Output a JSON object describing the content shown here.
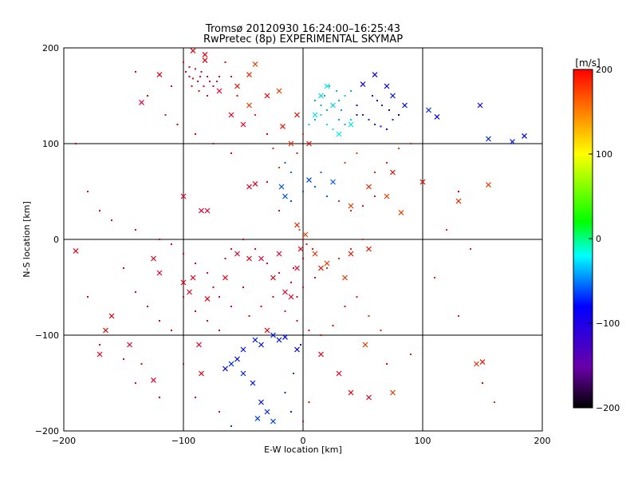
{
  "chart_data": {
    "type": "scatter",
    "title": "Tromsø 20120930 16:24:00–16:25:43",
    "subtitle": "RwPretec (8p) EXPERIMENTAL SKYMAP",
    "xlabel": "E-W location [km]",
    "ylabel": "N-S location [km]",
    "xlim": [
      -200,
      200
    ],
    "ylim": [
      -200,
      200
    ],
    "xticks": [
      -200,
      -100,
      0,
      100,
      200
    ],
    "yticks": [
      -200,
      -100,
      0,
      100,
      200
    ],
    "grid": true,
    "colorbar": {
      "label": "[m/s]",
      "range": [
        -200,
        200
      ],
      "ticks": [
        200,
        100,
        0,
        -100,
        -200
      ],
      "colormap": "rainbow (black → purple → blue → cyan → green → yellow → red)"
    },
    "series": [
      {
        "marker": "x",
        "points": [
          [
            -92,
            197
          ],
          [
            -82,
            193
          ],
          [
            -120,
            172
          ],
          [
            -135,
            143
          ],
          [
            -82,
            187
          ],
          [
            -70,
            155
          ],
          [
            -60,
            130
          ],
          [
            -50,
            120
          ],
          [
            -45,
            140
          ],
          [
            -55,
            160
          ],
          [
            -45,
            172
          ],
          [
            -40,
            183
          ],
          [
            -30,
            150
          ],
          [
            -20,
            155
          ],
          [
            -17,
            118
          ],
          [
            -10,
            100
          ],
          [
            -5,
            130
          ],
          [
            5,
            100
          ],
          [
            10,
            130
          ],
          [
            15,
            150
          ],
          [
            20,
            160
          ],
          [
            25,
            140
          ],
          [
            30,
            110
          ],
          [
            40,
            120
          ],
          [
            50,
            162
          ],
          [
            60,
            172
          ],
          [
            70,
            160
          ],
          [
            75,
            150
          ],
          [
            85,
            140
          ],
          [
            105,
            135
          ],
          [
            112,
            128
          ],
          [
            148,
            140
          ],
          [
            155,
            105
          ],
          [
            175,
            102
          ],
          [
            185,
            108
          ],
          [
            -45,
            55
          ],
          [
            -40,
            58
          ],
          [
            -18,
            55
          ],
          [
            -15,
            45
          ],
          [
            5,
            62
          ],
          [
            25,
            60
          ],
          [
            40,
            35
          ],
          [
            55,
            55
          ],
          [
            70,
            45
          ],
          [
            75,
            70
          ],
          [
            82,
            28
          ],
          [
            100,
            60
          ],
          [
            130,
            40
          ],
          [
            155,
            57
          ],
          [
            -100,
            45
          ],
          [
            -85,
            30
          ],
          [
            -80,
            30
          ],
          [
            -190,
            -12
          ],
          [
            -125,
            -20
          ],
          [
            -120,
            -35
          ],
          [
            -100,
            -45
          ],
          [
            -95,
            -55
          ],
          [
            -92,
            -40
          ],
          [
            -80,
            -62
          ],
          [
            -65,
            -40
          ],
          [
            -55,
            -15
          ],
          [
            -45,
            -20
          ],
          [
            -35,
            -20
          ],
          [
            -25,
            -40
          ],
          [
            -15,
            -55
          ],
          [
            -10,
            -60
          ],
          [
            -5,
            -30
          ],
          [
            -2,
            -10
          ],
          [
            2,
            5
          ],
          [
            -5,
            15
          ],
          [
            10,
            -15
          ],
          [
            15,
            -30
          ],
          [
            20,
            -25
          ],
          [
            35,
            -40
          ],
          [
            40,
            -15
          ],
          [
            55,
            -10
          ],
          [
            -20,
            -15
          ],
          [
            -170,
            -120
          ],
          [
            -165,
            -95
          ],
          [
            -160,
            -80
          ],
          [
            -145,
            -110
          ],
          [
            -125,
            -147
          ],
          [
            -85,
            -140
          ],
          [
            -87,
            -110
          ],
          [
            -55,
            -125
          ],
          [
            -50,
            -140
          ],
          [
            -42,
            -150
          ],
          [
            -35,
            -170
          ],
          [
            -30,
            -180
          ],
          [
            -25,
            -190
          ],
          [
            -38,
            -187
          ],
          [
            15,
            -120
          ],
          [
            30,
            -140
          ],
          [
            40,
            -160
          ],
          [
            55,
            -165
          ],
          [
            75,
            -160
          ],
          [
            150,
            -128
          ],
          [
            145,
            -130
          ],
          [
            52,
            -110
          ],
          [
            -65,
            -135
          ],
          [
            -50,
            -115
          ],
          [
            -40,
            -105
          ],
          [
            -35,
            -110
          ],
          [
            -25,
            -100
          ],
          [
            -20,
            -105
          ],
          [
            -15,
            -102
          ],
          [
            -30,
            -95
          ],
          [
            -5,
            -115
          ],
          [
            -60,
            -130
          ]
        ]
      },
      {
        "marker": "dot",
        "points": [
          [
            -100,
            185
          ],
          [
            -95,
            180
          ],
          [
            -90,
            178
          ],
          [
            -85,
            175
          ],
          [
            -80,
            170
          ],
          [
            -78,
            165
          ],
          [
            -95,
            170
          ],
          [
            -88,
            165
          ],
          [
            -83,
            160
          ],
          [
            -93,
            160
          ],
          [
            -87,
            155
          ],
          [
            -80,
            150
          ],
          [
            -75,
            160
          ],
          [
            -72,
            165
          ],
          [
            -70,
            170
          ],
          [
            -98,
            175
          ],
          [
            -92,
            168
          ],
          [
            -86,
            170
          ],
          [
            -110,
            160
          ],
          [
            -115,
            130
          ],
          [
            -105,
            120
          ],
          [
            -65,
            185
          ],
          [
            -60,
            170
          ],
          [
            -55,
            150
          ],
          [
            -40,
            130
          ],
          [
            -30,
            110
          ],
          [
            -25,
            95
          ],
          [
            -15,
            80
          ],
          [
            -5,
            90
          ],
          [
            0,
            110
          ],
          [
            5,
            120
          ],
          [
            10,
            125
          ],
          [
            15,
            130
          ],
          [
            20,
            135
          ],
          [
            25,
            140
          ],
          [
            30,
            145
          ],
          [
            35,
            150
          ],
          [
            40,
            155
          ],
          [
            45,
            140
          ],
          [
            50,
            130
          ],
          [
            55,
            125
          ],
          [
            60,
            120
          ],
          [
            65,
            118
          ],
          [
            70,
            115
          ],
          [
            75,
            125
          ],
          [
            80,
            130
          ],
          [
            72,
            135
          ],
          [
            66,
            140
          ],
          [
            62,
            145
          ],
          [
            58,
            150
          ],
          [
            20,
            120
          ],
          [
            25,
            115
          ],
          [
            30,
            125
          ],
          [
            35,
            120
          ],
          [
            40,
            125
          ],
          [
            45,
            130
          ],
          [
            10,
            145
          ],
          [
            15,
            140
          ],
          [
            18,
            150
          ],
          [
            22,
            160
          ],
          [
            28,
            155
          ],
          [
            32,
            135
          ],
          [
            -190,
            100
          ],
          [
            -180,
            50
          ],
          [
            -170,
            30
          ],
          [
            -160,
            20
          ],
          [
            -140,
            10
          ],
          [
            -120,
            0
          ],
          [
            -110,
            -5
          ],
          [
            -100,
            -15
          ],
          [
            -90,
            -25
          ],
          [
            -80,
            -35
          ],
          [
            -75,
            -50
          ],
          [
            -70,
            -60
          ],
          [
            -65,
            -20
          ],
          [
            -60,
            -10
          ],
          [
            -50,
            0
          ],
          [
            -40,
            -10
          ],
          [
            -30,
            -25
          ],
          [
            -20,
            -35
          ],
          [
            -10,
            -45
          ],
          [
            0,
            -50
          ],
          [
            10,
            -40
          ],
          [
            20,
            -30
          ],
          [
            30,
            -20
          ],
          [
            40,
            -10
          ],
          [
            50,
            0
          ],
          [
            -150,
            -30
          ],
          [
            -140,
            -55
          ],
          [
            -130,
            -70
          ],
          [
            -120,
            -85
          ],
          [
            -110,
            -95
          ],
          [
            -100,
            -60
          ],
          [
            -90,
            -75
          ],
          [
            -80,
            -85
          ],
          [
            -70,
            -95
          ],
          [
            -60,
            -70
          ],
          [
            -50,
            -50
          ],
          [
            -45,
            -80
          ],
          [
            -35,
            -70
          ],
          [
            -25,
            -60
          ],
          [
            -15,
            -75
          ],
          [
            -5,
            -85
          ],
          [
            5,
            -95
          ],
          [
            15,
            -100
          ],
          [
            25,
            -90
          ],
          [
            35,
            -70
          ],
          [
            45,
            -60
          ],
          [
            55,
            -80
          ],
          [
            65,
            -95
          ],
          [
            -180,
            -60
          ],
          [
            -170,
            -110
          ],
          [
            -150,
            -125
          ],
          [
            -135,
            -130
          ],
          [
            -100,
            -130
          ],
          [
            -140,
            -150
          ],
          [
            -120,
            -165
          ],
          [
            -90,
            -165
          ],
          [
            -70,
            -180
          ],
          [
            -60,
            -195
          ],
          [
            -20,
            30
          ],
          [
            -10,
            40
          ],
          [
            0,
            50
          ],
          [
            10,
            55
          ],
          [
            20,
            45
          ],
          [
            30,
            40
          ],
          [
            40,
            30
          ],
          [
            50,
            35
          ],
          [
            60,
            45
          ],
          [
            -30,
            60
          ],
          [
            -20,
            75
          ],
          [
            -10,
            70
          ],
          [
            15,
            70
          ],
          [
            35,
            80
          ],
          [
            45,
            90
          ],
          [
            60,
            70
          ],
          [
            70,
            80
          ],
          [
            80,
            95
          ],
          [
            90,
            100
          ],
          [
            -60,
            90
          ],
          [
            -75,
            100
          ],
          [
            -90,
            110
          ],
          [
            -130,
            150
          ],
          [
            -140,
            175
          ],
          [
            120,
            10
          ],
          [
            130,
            50
          ],
          [
            140,
            -10
          ],
          [
            130,
            -80
          ],
          [
            150,
            -150
          ],
          [
            160,
            -170
          ],
          [
            110,
            -40
          ],
          [
            90,
            -120
          ],
          [
            70,
            -130
          ],
          [
            0,
            0
          ],
          [
            0,
            -20
          ],
          [
            -3,
            10
          ],
          [
            3,
            -5
          ],
          [
            -8,
            -30
          ],
          [
            8,
            -10
          ],
          [
            -5,
            -60
          ],
          [
            -2,
            -110
          ],
          [
            -8,
            -140
          ],
          [
            -10,
            -180
          ],
          [
            0,
            -190
          ],
          [
            5,
            -170
          ],
          [
            -15,
            -160
          ]
        ]
      }
    ]
  }
}
